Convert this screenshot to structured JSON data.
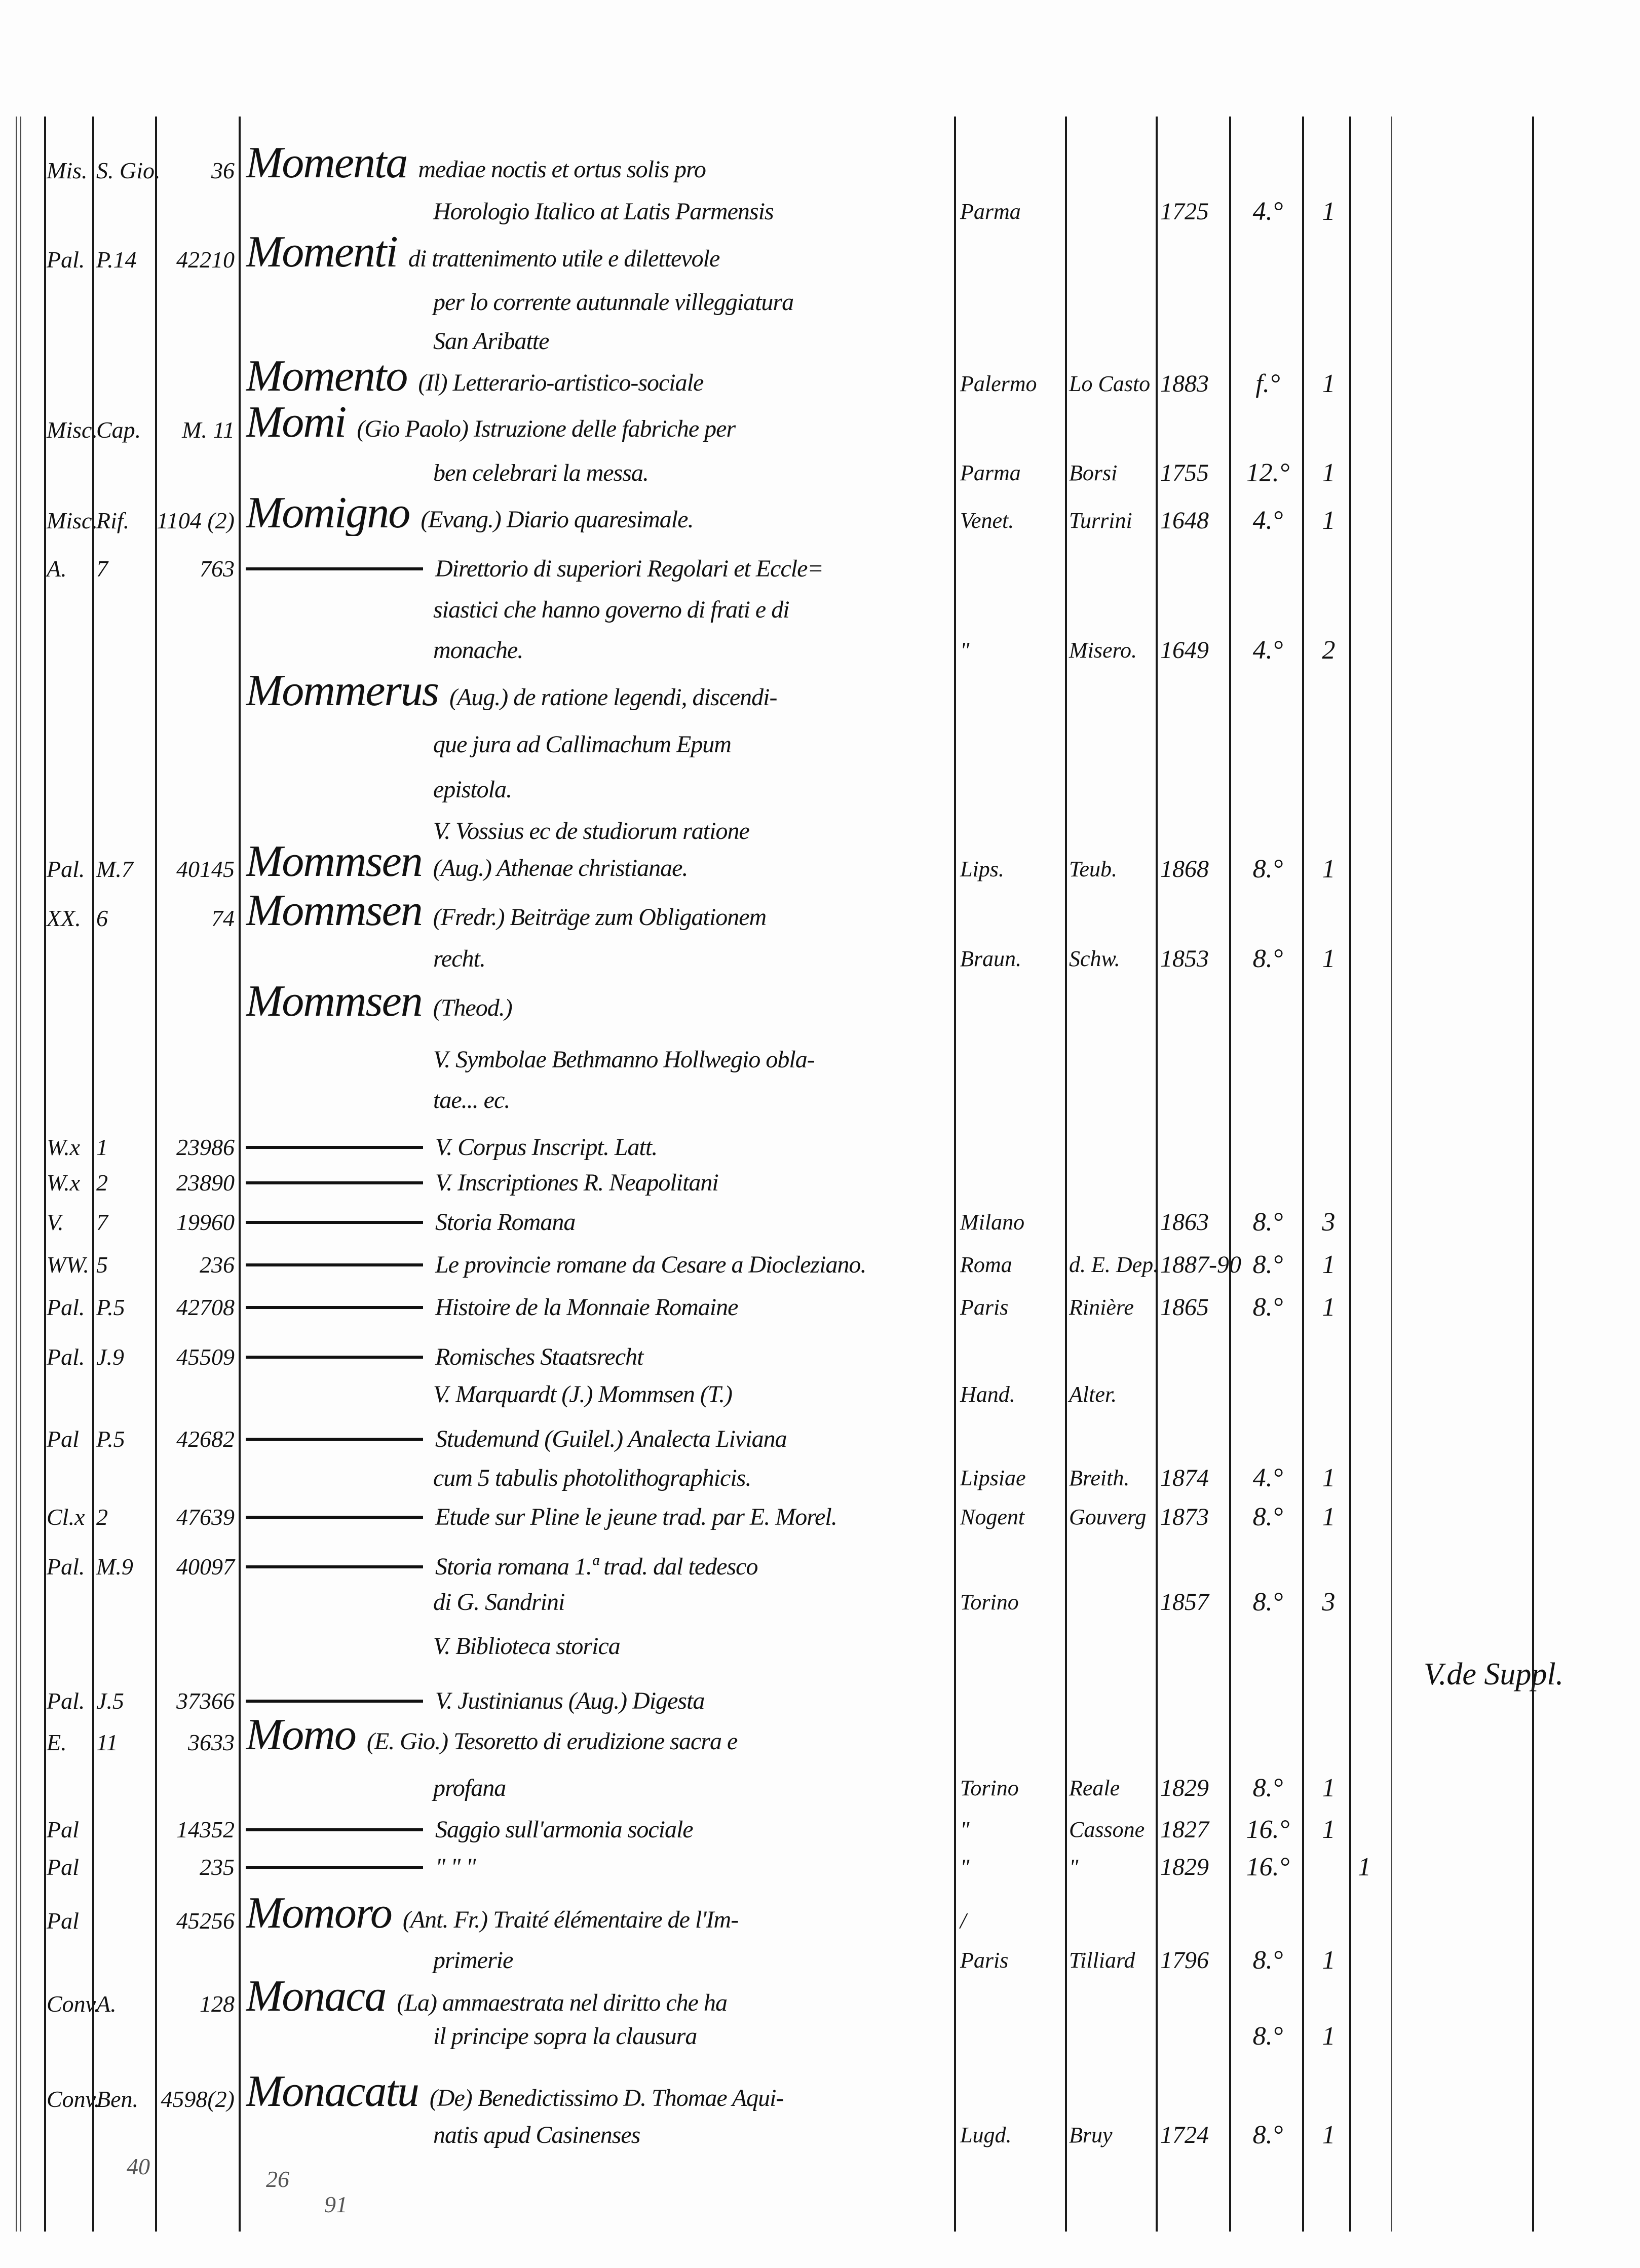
{
  "entries": [
    {
      "shelf": "Mis.",
      "sub": "S. Gio.",
      "num": "36",
      "head": "Momenta",
      "text": "mediae noctis et ortus solis pro"
    },
    {
      "text": "Horologio Italico at Latis Parmensis",
      "place": "Parma",
      "year": "1725",
      "format": "4.°",
      "vols": "1"
    },
    {
      "shelf": "Pal.",
      "sub": "P.14",
      "num": "42210",
      "head": "Momenti",
      "text": "di trattenimento utile e dilettevole"
    },
    {
      "text": "per lo corrente autunnale villeggiatura"
    },
    {
      "text": "San Aribatte"
    },
    {
      "head": "Momento",
      "text": "(Il) Letterario-artistico-sociale",
      "place": "Palermo",
      "printer": "Lo Casto",
      "year": "1883",
      "format": "f.°",
      "vols": "1"
    },
    {
      "shelf": "Misc.",
      "sub": "Cap.",
      "num": "M. 11",
      "head": "Momi",
      "text": "(Gio Paolo) Istruzione delle fabriche per"
    },
    {
      "text": "ben celebrari la messa.",
      "place": "Parma",
      "printer": "Borsi",
      "year": "1755",
      "format": "12.°",
      "vols": "1"
    },
    {
      "shelf": "Misc.",
      "sub": "Rif.",
      "num": "1104 (2)",
      "head": "Momigno",
      "text": "(Evang.) Diario quaresimale.",
      "place": "Venet.",
      "printer": "Turrini",
      "year": "1648",
      "format": "4.°",
      "vols": "1"
    },
    {
      "shelf": "A.",
      "sub": "7",
      "num": "763",
      "dash": true,
      "text": "Direttorio di superiori Regolari et Eccle="
    },
    {
      "text": "siastici che hanno governo di frati e di"
    },
    {
      "text": "monache.",
      "place": "\"",
      "printer": "Misero.",
      "year": "1649",
      "format": "4.°",
      "vols": "2"
    },
    {
      "head": "Mommerus",
      "text": "(Aug.) de ratione legendi, discendi-"
    },
    {
      "text": "que jura ad Callimachum Epum"
    },
    {
      "text": "epistola."
    },
    {
      "text": "V. Vossius ec de studiorum ratione"
    },
    {
      "shelf": "Pal.",
      "sub": "M.7",
      "num": "40145",
      "head": "Mommsen",
      "text": "(Aug.) Athenae christianae.",
      "place": "Lips.",
      "printer": "Teub.",
      "year": "1868",
      "format": "8.°",
      "vols": "1"
    },
    {
      "shelf": "XX.",
      "sub": "6",
      "num": "74",
      "head": "Mommsen",
      "text": "(Fredr.) Beiträge zum Obligationem"
    },
    {
      "text": "recht.",
      "place": "Braun.",
      "printer": "Schw.",
      "year": "1853",
      "format": "8.°",
      "vols": "1"
    },
    {
      "head": "Mommsen",
      "text": "(Theod.)"
    },
    {
      "text": "V. Symbolae Bethmanno Hollwegio obla-"
    },
    {
      "text": "tae... ec."
    },
    {
      "shelf": "W.x",
      "sub": "1",
      "num": "23986",
      "dash": true,
      "text": "V. Corpus Inscript. Latt."
    },
    {
      "shelf": "W.x",
      "sub": "2",
      "num": "23890",
      "dash": true,
      "text": "V. Inscriptiones R. Neapolitani"
    },
    {
      "shelf": "V.",
      "sub": "7",
      "num": "19960",
      "dash": true,
      "text": "Storia Romana",
      "place": "Milano",
      "year": "1863",
      "format": "8.°",
      "vols": "3"
    },
    {
      "shelf": "WW.",
      "sub": "5",
      "num": "236",
      "dash": true,
      "text": "Le provincie romane da Cesare a Diocleziano.",
      "place": "Roma",
      "printer": "d. E. Dep.",
      "year": "1887-90",
      "format": "8.°",
      "vols": "1"
    },
    {
      "shelf": "Pal.",
      "sub": "P.5",
      "num": "42708",
      "dash": true,
      "text": "Histoire de la Monnaie Romaine",
      "place": "Paris",
      "printer": "Rinière",
      "year": "1865",
      "format": "8.°",
      "vols": "1"
    },
    {
      "shelf": "Pal.",
      "sub": "J.9",
      "num": "45509",
      "dash": true,
      "text": "Romisches Staatsrecht"
    },
    {
      "text": "V. Marquardt (J.) Mommsen (T.)",
      "place": "Hand.",
      "printer": "Alter."
    },
    {
      "shelf": "Pal",
      "sub": "P.5",
      "num": "42682",
      "dash": true,
      "text": "Studemund (Guilel.) Analecta Liviana"
    },
    {
      "text": "cum 5 tabulis photolithographicis.",
      "place": "Lipsiae",
      "printer": "Breith.",
      "year": "1874",
      "format": "4.°",
      "vols": "1"
    },
    {
      "shelf": "Cl.x",
      "sub": "2",
      "num": "47639",
      "dash": true,
      "text": "Etude sur Pline le jeune trad. par E. Morel.",
      "place": "Nogent",
      "printer": "Gouverg",
      "year": "1873",
      "format": "8.°",
      "vols": "1"
    },
    {
      "shelf": "Pal.",
      "sub": "M.9",
      "num": "40097",
      "dash": true,
      "text": "Storia romana 1.ª trad. dal tedesco"
    },
    {
      "text": "di G. Sandrini",
      "place": "Torino",
      "year": "1857",
      "format": "8.°",
      "vols": "3"
    },
    {
      "text": "V. Biblioteca storica"
    },
    {
      "shelf": "Pal.",
      "sub": "J.5",
      "num": "37366",
      "dash": true,
      "text": "V. Justinianus (Aug.) Digesta"
    },
    {
      "shelf": "E.",
      "sub": "11",
      "num": "3633",
      "head": "Momo",
      "text": "(E. Gio.) Tesoretto di erudizione sacra e"
    },
    {
      "text": "profana",
      "place": "Torino",
      "printer": "Reale",
      "year": "1829",
      "format": "8.°",
      "vols": "1"
    },
    {
      "shelf": "Pal",
      "num": "14352",
      "dash": true,
      "text": "Saggio sull'armonia sociale",
      "place": "\"",
      "printer": "Cassone",
      "year": "1827",
      "format": "16.°",
      "vols": "1"
    },
    {
      "shelf": "Pal",
      "num": "235",
      "dash": true,
      "text": "\"          \"          \"",
      "place": "\"",
      "printer": "\"",
      "year": "1829",
      "format": "16.°",
      "extra": "1"
    },
    {
      "shelf": "Pal",
      "num": "45256",
      "head": "Momoro",
      "text": "(Ant. Fr.) Traité élémentaire de l'Im-",
      "place": "/"
    },
    {
      "text": "primerie",
      "place": "Paris",
      "printer": "Tilliard",
      "year": "1796",
      "format": "8.°",
      "vols": "1"
    },
    {
      "shelf": "Conv.",
      "sub": "A.",
      "num": "128",
      "head": "Monaca",
      "text": "(La) ammaestrata nel diritto che ha"
    },
    {
      "text": "il principe sopra la clausura",
      "format": "8.°",
      "vols": "1"
    },
    {
      "shelf": "Conv.",
      "sub": "Ben.",
      "num": "4598(2)",
      "head": "Monacatu",
      "text": "(De) Benedictissimo D. Thomae Aqui-"
    },
    {
      "text": "natis apud Casinenses",
      "place": "Lugd.",
      "printer": "Bruy",
      "year": "1724",
      "format": "8.°",
      "vols": "1"
    }
  ],
  "margin_note": "V.de Suppl.",
  "footer": {
    "left": "40",
    "middle": "26",
    "bottom": "91"
  }
}
